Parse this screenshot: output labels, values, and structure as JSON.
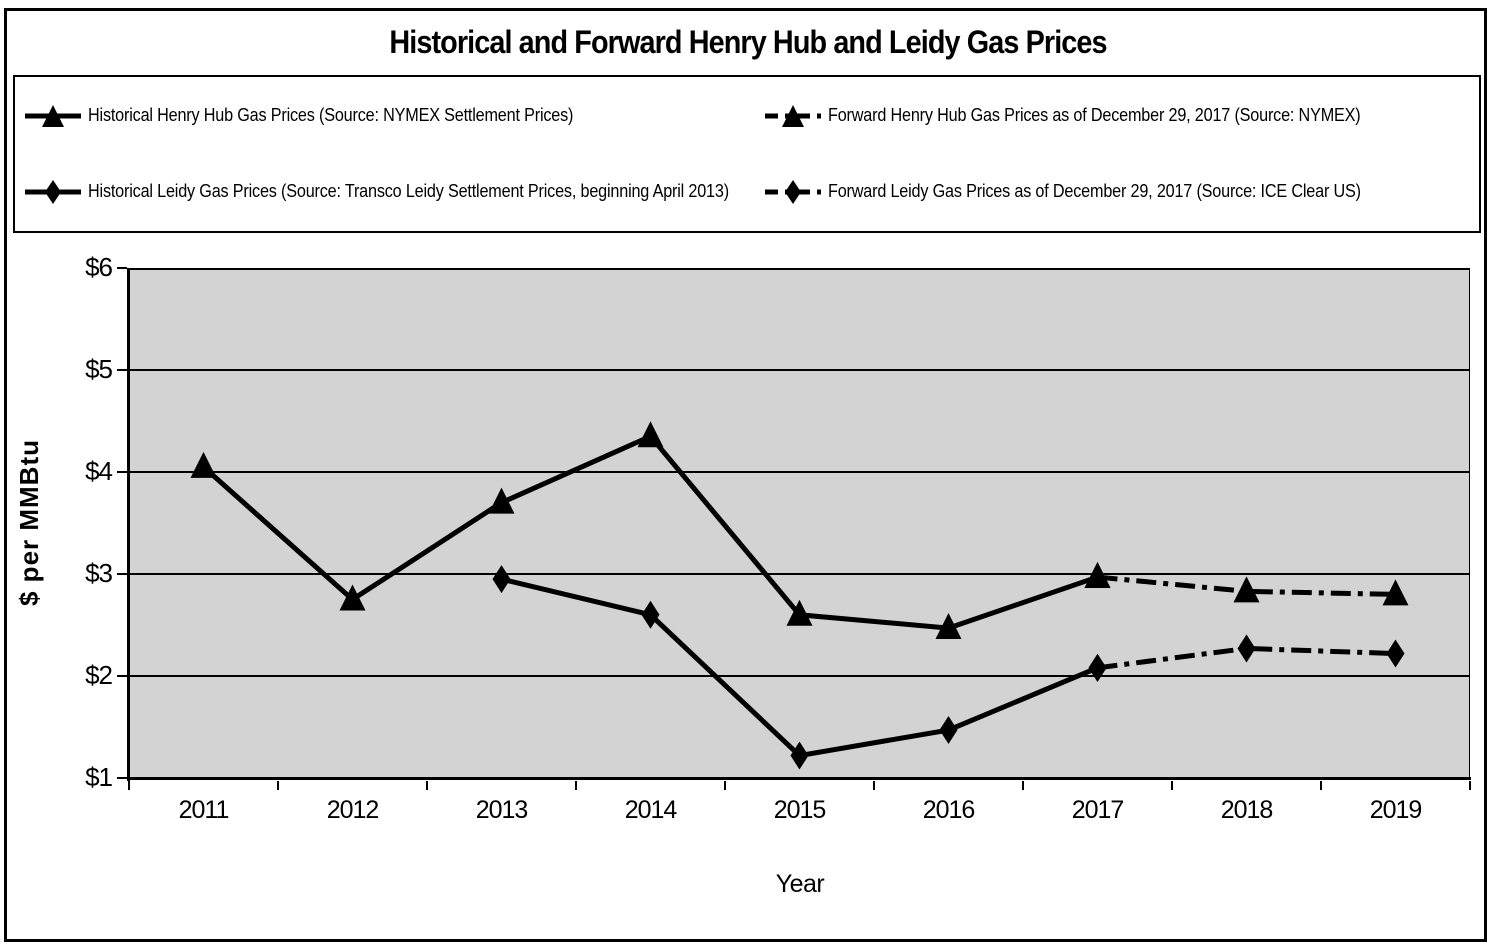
{
  "title": "Historical and Forward Henry Hub and Leidy Gas Prices",
  "colors": {
    "line": "#000000",
    "plot_bg": "#D3D3D3",
    "page_bg": "#FFFFFF",
    "border": "#000000",
    "text": "#000000"
  },
  "chart_data": {
    "type": "line",
    "title": "Historical and Forward Henry Hub and Leidy Gas Prices",
    "xlabel": "Year",
    "ylabel": "$ per MMBtu",
    "ylim": [
      1,
      6
    ],
    "y_ticks_top_to_bottom": [
      "$6",
      "$5",
      "$4",
      "$3",
      "$2",
      "$1"
    ],
    "categories": [
      "2011",
      "2012",
      "2013",
      "2014",
      "2015",
      "2016",
      "2017",
      "2018",
      "2019"
    ],
    "grid": "horizontal gridlines on",
    "legend_position": "top, boxed, two columns",
    "series": [
      {
        "name": "Historical Henry Hub Gas Prices (Source: NYMEX Settlement Prices)",
        "marker": "triangle",
        "line_style": "solid",
        "x": [
          "2011",
          "2012",
          "2013",
          "2014",
          "2015",
          "2016",
          "2017"
        ],
        "values": [
          4.05,
          2.75,
          3.7,
          4.35,
          2.6,
          2.47,
          2.97
        ]
      },
      {
        "name": "Forward Henry Hub Gas Prices as of December 29, 2017 (Source: NYMEX)",
        "marker": "triangle",
        "line_style": "dash-dot",
        "x": [
          "2017",
          "2018",
          "2019"
        ],
        "values": [
          2.97,
          2.83,
          2.8
        ]
      },
      {
        "name": "Historical Leidy Gas Prices (Source: Transco Leidy Settlement Prices, beginning April 2013)",
        "marker": "diamond",
        "line_style": "solid",
        "x": [
          "2013",
          "2014",
          "2015",
          "2016",
          "2017"
        ],
        "values": [
          2.95,
          2.6,
          1.22,
          1.47,
          2.08
        ]
      },
      {
        "name": "Forward Leidy Gas Prices as of December 29, 2017 (Source: ICE Clear US)",
        "marker": "diamond",
        "line_style": "dash-dot",
        "x": [
          "2017",
          "2018",
          "2019"
        ],
        "values": [
          2.08,
          2.27,
          2.22
        ]
      }
    ]
  }
}
